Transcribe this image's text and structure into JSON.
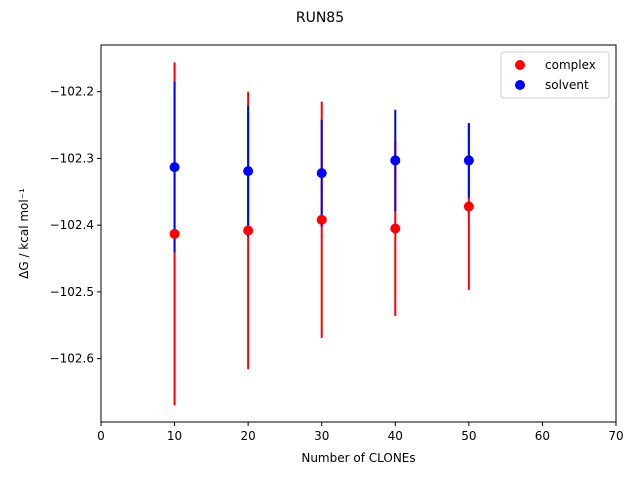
{
  "chart_data": {
    "type": "scatter",
    "title": "RUN85",
    "xlabel": "Number of CLONEs",
    "ylabel": "ΔG / kcal mol⁻¹",
    "xlim": [
      0,
      70
    ],
    "ylim": [
      -102.695,
      -102.13
    ],
    "xticks": [
      0,
      10,
      20,
      30,
      40,
      50,
      60,
      70
    ],
    "yticks": [
      -102.6,
      -102.5,
      -102.4,
      -102.3,
      -102.2
    ],
    "ytick_labels": [
      "−102.6",
      "−102.5",
      "−102.4",
      "−102.3",
      "−102.2"
    ],
    "error_bars": true,
    "legend_position": "top-right",
    "series": [
      {
        "name": "complex",
        "color": "#ff0000",
        "x": [
          10,
          20,
          30,
          40,
          50
        ],
        "y": [
          -102.413,
          -102.408,
          -102.392,
          -102.405,
          -102.372
        ],
        "yerr": [
          0.257,
          0.208,
          0.177,
          0.131,
          0.125
        ]
      },
      {
        "name": "solvent",
        "color": "#0000ff",
        "x": [
          10,
          20,
          30,
          40,
          50
        ],
        "y": [
          -102.313,
          -102.319,
          -102.322,
          -102.303,
          -102.303
        ],
        "yerr": [
          0.128,
          0.098,
          0.08,
          0.076,
          0.056
        ]
      }
    ]
  }
}
